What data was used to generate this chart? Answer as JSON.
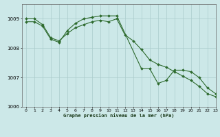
{
  "title": "Graphe pression niveau de la mer (hPa)",
  "background_color": "#cce8e8",
  "grid_color": "#aacccc",
  "line_color": "#2d6a2d",
  "xlim": [
    -0.5,
    23
  ],
  "ylim": [
    1006.0,
    1009.5
  ],
  "yticks": [
    1006,
    1007,
    1008,
    1009
  ],
  "xticks": [
    0,
    1,
    2,
    3,
    4,
    5,
    6,
    7,
    8,
    9,
    10,
    11,
    12,
    13,
    14,
    15,
    16,
    17,
    18,
    19,
    20,
    21,
    22,
    23
  ],
  "series1_x": [
    0,
    1,
    2,
    3,
    4,
    5,
    6,
    7,
    8,
    9,
    10,
    11,
    14,
    15,
    16,
    17,
    18,
    19,
    20,
    21,
    22,
    23
  ],
  "series1_y": [
    1008.9,
    1008.9,
    1008.75,
    1008.3,
    1008.2,
    1008.6,
    1008.85,
    1009.0,
    1009.05,
    1009.1,
    1009.1,
    1009.1,
    1007.3,
    1007.3,
    1006.8,
    1006.9,
    1007.25,
    1007.25,
    1007.2,
    1007.0,
    1006.65,
    1006.45
  ],
  "series2_x": [
    0,
    1,
    2,
    3,
    4,
    5,
    6,
    7,
    8,
    9,
    10,
    11,
    12,
    13,
    14,
    15,
    16,
    17,
    18,
    19,
    20,
    21,
    22,
    23
  ],
  "series2_y": [
    1009.0,
    1009.0,
    1008.8,
    1008.35,
    1008.25,
    1008.5,
    1008.7,
    1008.8,
    1008.9,
    1008.95,
    1008.9,
    1009.0,
    1008.45,
    1008.25,
    1007.95,
    1007.6,
    1007.45,
    1007.35,
    1007.2,
    1007.05,
    1006.9,
    1006.7,
    1006.45,
    1006.35
  ]
}
